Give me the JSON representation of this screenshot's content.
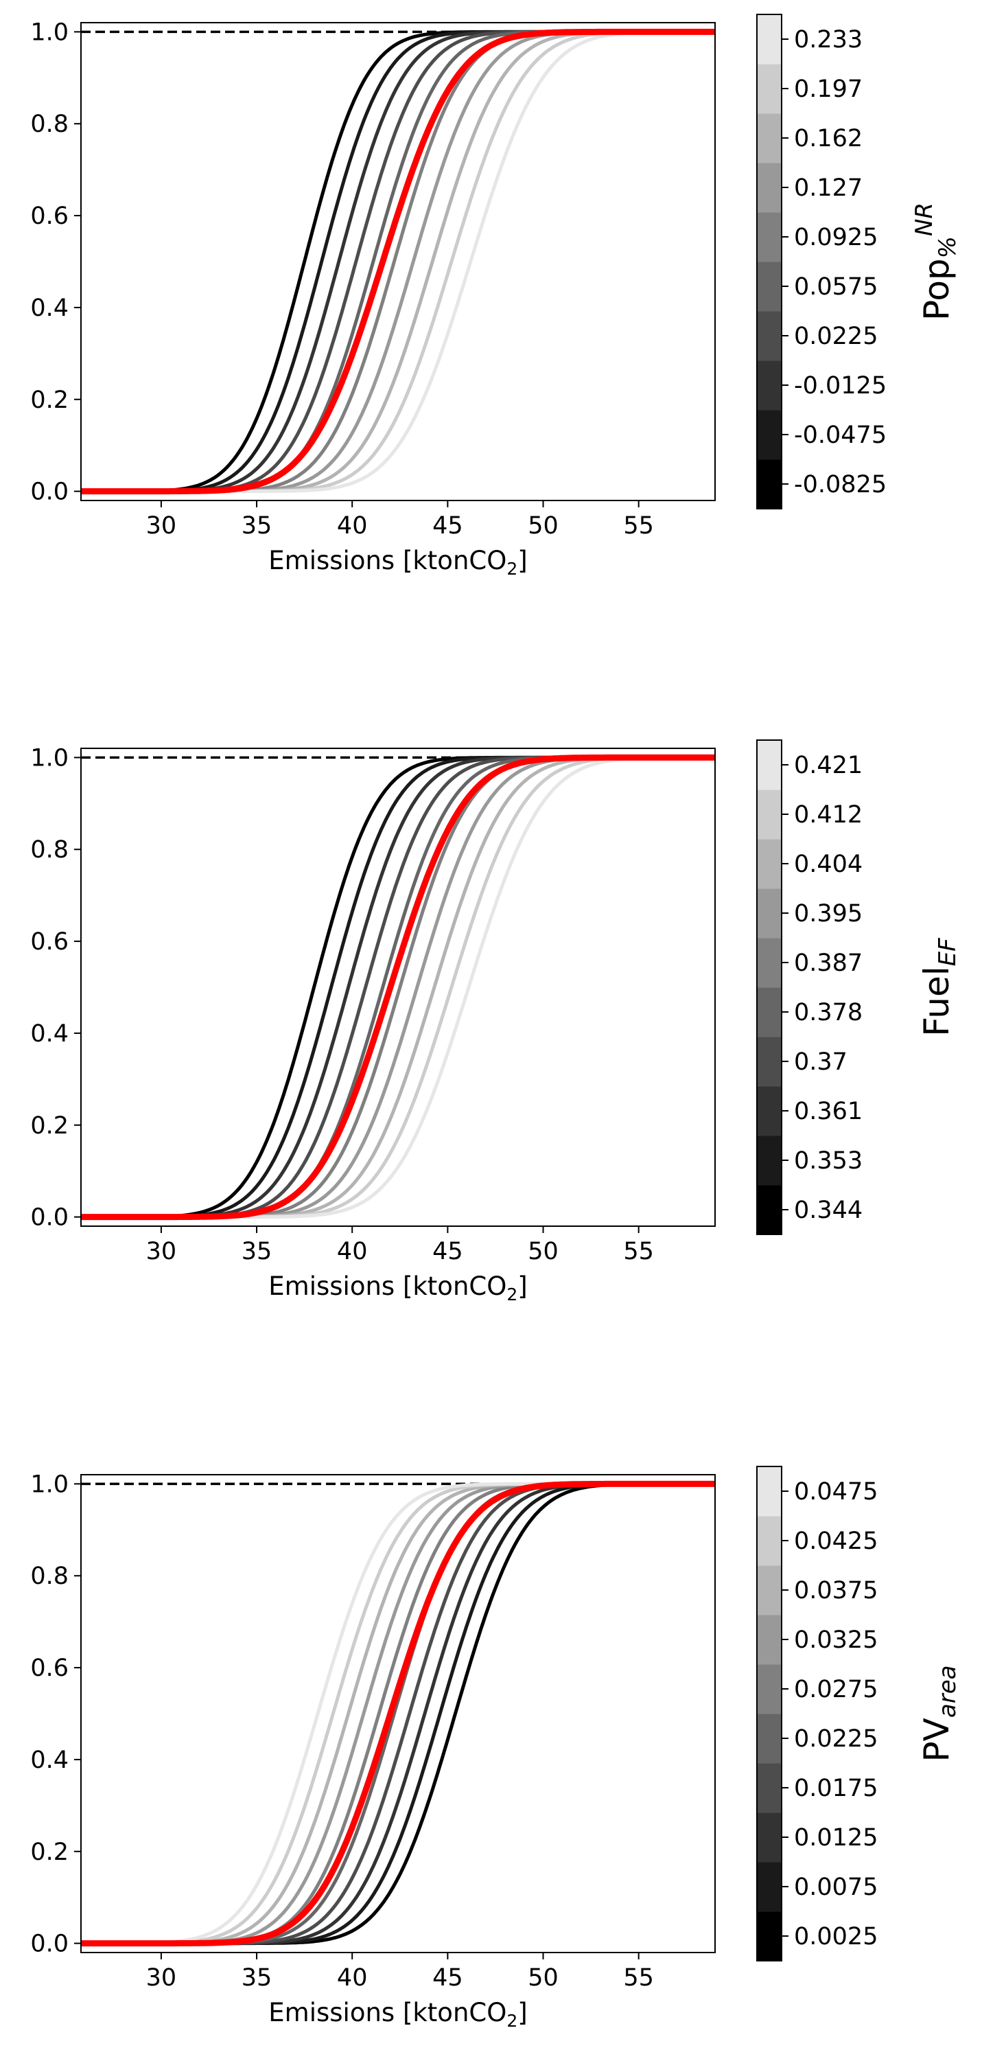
{
  "chart_data": [
    {
      "type": "line",
      "xlabel": "Emissions [ktonCO",
      "xlabel_sub": "2",
      "xlabel_end": "]",
      "xlim": [
        25.8,
        59
      ],
      "ylim": [
        -0.02,
        1.02
      ],
      "xticks": [
        "30",
        "35",
        "40",
        "45",
        "50",
        "55"
      ],
      "yticks": [
        "0.0",
        "0.2",
        "0.4",
        "0.6",
        "0.8",
        "1.0"
      ],
      "reference_line_y": 1.0,
      "highlight_color": "#ff0000",
      "colorbar": {
        "label_main": "Pop",
        "label_sub": "%",
        "label_sup": "NR",
        "ticks": [
          "-0.0825",
          "-0.0475",
          "-0.0125",
          "0.0225",
          "0.0575",
          "0.0925",
          "0.127",
          "0.162",
          "0.197",
          "0.233"
        ],
        "colors": [
          "#000000",
          "#1a1a1a",
          "#333333",
          "#4d4d4d",
          "#666666",
          "#808080",
          "#999999",
          "#b3b3b3",
          "#cccccc",
          "#e6e6e6"
        ]
      },
      "series": [
        {
          "color": "#000000",
          "median": 37.5,
          "scale": 2.5
        },
        {
          "color": "#1a1a1a",
          "median": 38.4,
          "scale": 2.55
        },
        {
          "color": "#333333",
          "median": 39.3,
          "scale": 2.6
        },
        {
          "color": "#4d4d4d",
          "median": 40.2,
          "scale": 2.65
        },
        {
          "color": "#666666",
          "median": 41.1,
          "scale": 2.7
        },
        {
          "color": "#808080",
          "median": 42.2,
          "scale": 2.75
        },
        {
          "color": "#999999",
          "median": 43.2,
          "scale": 2.8
        },
        {
          "color": "#b3b3b3",
          "median": 44.2,
          "scale": 2.85
        },
        {
          "color": "#cccccc",
          "median": 45.2,
          "scale": 2.9
        },
        {
          "color": "#e6e6e6",
          "median": 46.2,
          "scale": 2.95
        },
        {
          "color": "#ff0000",
          "median": 41.6,
          "scale": 3.0,
          "highlight": true
        }
      ]
    },
    {
      "type": "line",
      "xlabel": "Emissions [ktonCO",
      "xlabel_sub": "2",
      "xlabel_end": "]",
      "xlim": [
        25.8,
        59
      ],
      "ylim": [
        -0.02,
        1.02
      ],
      "xticks": [
        "30",
        "35",
        "40",
        "45",
        "50",
        "55"
      ],
      "yticks": [
        "0.0",
        "0.2",
        "0.4",
        "0.6",
        "0.8",
        "1.0"
      ],
      "reference_line_y": 1.0,
      "highlight_color": "#ff0000",
      "colorbar": {
        "label_main": "Fuel",
        "label_sub": "EF",
        "label_sup": "",
        "ticks": [
          "0.344",
          "0.353",
          "0.361",
          "0.37",
          "0.378",
          "0.387",
          "0.395",
          "0.404",
          "0.412",
          "0.421"
        ],
        "colors": [
          "#000000",
          "#1a1a1a",
          "#333333",
          "#4d4d4d",
          "#666666",
          "#808080",
          "#999999",
          "#b3b3b3",
          "#cccccc",
          "#e6e6e6"
        ]
      },
      "series": [
        {
          "color": "#000000",
          "median": 38.0,
          "scale": 2.55
        },
        {
          "color": "#1a1a1a",
          "median": 38.9,
          "scale": 2.6
        },
        {
          "color": "#333333",
          "median": 39.8,
          "scale": 2.65
        },
        {
          "color": "#4d4d4d",
          "median": 40.7,
          "scale": 2.7
        },
        {
          "color": "#666666",
          "median": 41.6,
          "scale": 2.75
        },
        {
          "color": "#808080",
          "median": 42.5,
          "scale": 2.8
        },
        {
          "color": "#999999",
          "median": 43.4,
          "scale": 2.85
        },
        {
          "color": "#b3b3b3",
          "median": 44.3,
          "scale": 2.9
        },
        {
          "color": "#cccccc",
          "median": 45.2,
          "scale": 2.95
        },
        {
          "color": "#e6e6e6",
          "median": 46.1,
          "scale": 3.0
        },
        {
          "color": "#ff0000",
          "median": 42.0,
          "scale": 3.0,
          "highlight": true
        }
      ]
    },
    {
      "type": "line",
      "xlabel": "Emissions [ktonCO",
      "xlabel_sub": "2",
      "xlabel_end": "]",
      "xlim": [
        25.8,
        59
      ],
      "ylim": [
        -0.02,
        1.02
      ],
      "xticks": [
        "30",
        "35",
        "40",
        "45",
        "50",
        "55"
      ],
      "yticks": [
        "0.0",
        "0.2",
        "0.4",
        "0.6",
        "0.8",
        "1.0"
      ],
      "reference_line_y": 1.0,
      "highlight_color": "#ff0000",
      "colorbar": {
        "label_main": "PV",
        "label_sub": "area",
        "label_sup": "",
        "ticks": [
          "0.0025",
          "0.0075",
          "0.0125",
          "0.0175",
          "0.0225",
          "0.0275",
          "0.0325",
          "0.0375",
          "0.0425",
          "0.0475"
        ],
        "colors": [
          "#000000",
          "#1a1a1a",
          "#333333",
          "#4d4d4d",
          "#666666",
          "#808080",
          "#999999",
          "#b3b3b3",
          "#cccccc",
          "#e6e6e6"
        ]
      },
      "series": [
        {
          "color": "#000000",
          "median": 45.4,
          "scale": 2.8
        },
        {
          "color": "#1a1a1a",
          "median": 44.6,
          "scale": 2.8
        },
        {
          "color": "#333333",
          "median": 43.8,
          "scale": 2.8
        },
        {
          "color": "#4d4d4d",
          "median": 43.0,
          "scale": 2.8
        },
        {
          "color": "#666666",
          "median": 42.2,
          "scale": 2.8
        },
        {
          "color": "#808080",
          "median": 41.4,
          "scale": 2.8
        },
        {
          "color": "#999999",
          "median": 40.6,
          "scale": 2.8
        },
        {
          "color": "#b3b3b3",
          "median": 39.8,
          "scale": 2.8
        },
        {
          "color": "#cccccc",
          "median": 39.0,
          "scale": 2.8
        },
        {
          "color": "#e6e6e6",
          "median": 38.2,
          "scale": 2.8
        },
        {
          "color": "#ff0000",
          "median": 42.0,
          "scale": 3.0,
          "highlight": true
        }
      ]
    }
  ]
}
